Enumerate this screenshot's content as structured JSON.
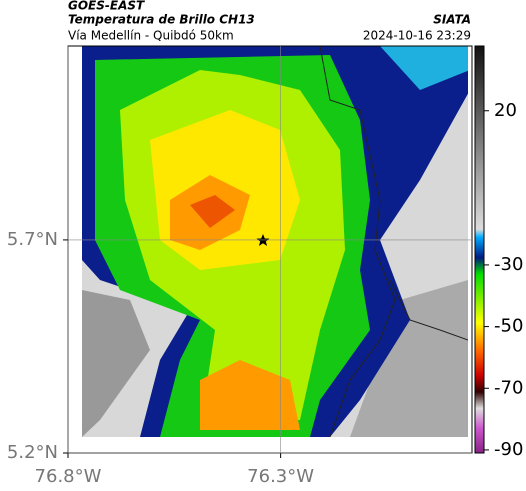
{
  "header": {
    "title": "GOES-EAST",
    "subtitle": "Temperatura de Brillo CH13",
    "source": "SIATA",
    "route": "Vía Medellín - Quibdó 50km",
    "datetime": "2024-10-16 23:29"
  },
  "map": {
    "xlim": [
      -76.8,
      -75.85
    ],
    "ylim": [
      5.2,
      6.155
    ],
    "xticks": [
      {
        "value": -76.8,
        "label": "76.8°W"
      },
      {
        "value": -76.3,
        "label": "76.3°W"
      }
    ],
    "yticks": [
      {
        "value": 5.7,
        "label": "5.7°N"
      },
      {
        "value": 5.2,
        "label": "5.2°N"
      }
    ]
  },
  "colorbar": {
    "lim": [
      -91,
      41
    ],
    "ticks": [
      20,
      -30,
      -50,
      -70,
      -90
    ]
  }
}
